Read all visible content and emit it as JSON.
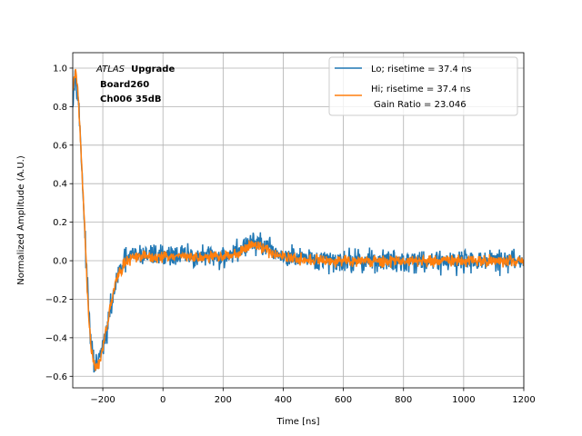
{
  "chart_data": {
    "type": "line",
    "xlabel": "Time [ns]",
    "ylabel": "Normalized Amplitude (A.U.)",
    "xlim": [
      -300,
      1200
    ],
    "ylim": [
      -0.66,
      1.08
    ],
    "xticks": [
      -200,
      0,
      200,
      400,
      600,
      800,
      1000,
      1200
    ],
    "yticks": [
      -0.6,
      -0.4,
      -0.2,
      0.0,
      0.2,
      0.4,
      0.6,
      0.8,
      1.0
    ],
    "xtick_labels": [
      "−200",
      "0",
      "200",
      "400",
      "600",
      "800",
      "1000",
      "1200"
    ],
    "ytick_labels": [
      "−0.6",
      "−0.4",
      "−0.2",
      "0.0",
      "0.2",
      "0.4",
      "0.6",
      "0.8",
      "1.0"
    ],
    "grid": true,
    "legend_position": "top-right",
    "annotation": {
      "experiment": "ATLAS",
      "tag": "Upgrade",
      "line2": "Board260",
      "line3": "Ch006 35dB"
    },
    "legend": {
      "lo": "Lo; risetime = 37.4 ns",
      "hi": "Hi; risetime = 37.4 ns",
      "ratio": "Gain Ratio = 23.046"
    },
    "series": [
      {
        "name": "Lo; risetime = 37.4 ns",
        "color": "#1f77b4",
        "noise": 0.045,
        "x": [
          -300,
          -290,
          -280,
          -270,
          -260,
          -250,
          -240,
          -230,
          -220,
          -210,
          -200,
          -190,
          -180,
          -170,
          -160,
          -150,
          -140,
          -130,
          -120,
          -100,
          -80,
          -60,
          -40,
          -20,
          0,
          50,
          100,
          150,
          200,
          250,
          280,
          300,
          330,
          360,
          400,
          450,
          500,
          600,
          700,
          800,
          900,
          1000,
          1100,
          1200
        ],
        "values": [
          0.85,
          0.99,
          0.8,
          0.5,
          0.15,
          -0.18,
          -0.42,
          -0.53,
          -0.55,
          -0.5,
          -0.45,
          -0.4,
          -0.3,
          -0.22,
          -0.14,
          -0.08,
          -0.04,
          -0.01,
          0.01,
          0.03,
          0.03,
          0.03,
          0.03,
          0.03,
          0.03,
          0.03,
          0.02,
          0.02,
          0.02,
          0.05,
          0.08,
          0.1,
          0.08,
          0.05,
          0.02,
          0.01,
          0.0,
          0.0,
          0.0,
          0.0,
          0.0,
          0.0,
          0.0,
          0.0
        ]
      },
      {
        "name": "Hi; risetime = 37.4 ns",
        "color": "#ff7f0e",
        "noise": 0.022,
        "x": [
          -300,
          -290,
          -280,
          -270,
          -260,
          -250,
          -240,
          -230,
          -220,
          -210,
          -200,
          -190,
          -180,
          -170,
          -160,
          -150,
          -140,
          -130,
          -120,
          -100,
          -80,
          -60,
          -40,
          -20,
          0,
          50,
          100,
          150,
          200,
          250,
          280,
          300,
          330,
          360,
          400,
          450,
          500,
          600,
          700,
          800,
          900,
          1000,
          1100,
          1200
        ],
        "values": [
          0.88,
          1.0,
          0.8,
          0.5,
          0.15,
          -0.2,
          -0.44,
          -0.54,
          -0.56,
          -0.52,
          -0.45,
          -0.36,
          -0.28,
          -0.2,
          -0.13,
          -0.08,
          -0.05,
          -0.02,
          0.0,
          0.02,
          0.02,
          0.02,
          0.02,
          0.02,
          0.02,
          0.02,
          0.02,
          0.02,
          0.02,
          0.04,
          0.07,
          0.09,
          0.07,
          0.04,
          0.02,
          0.01,
          0.0,
          0.0,
          0.0,
          0.0,
          0.0,
          0.0,
          0.0,
          0.0
        ]
      }
    ]
  }
}
